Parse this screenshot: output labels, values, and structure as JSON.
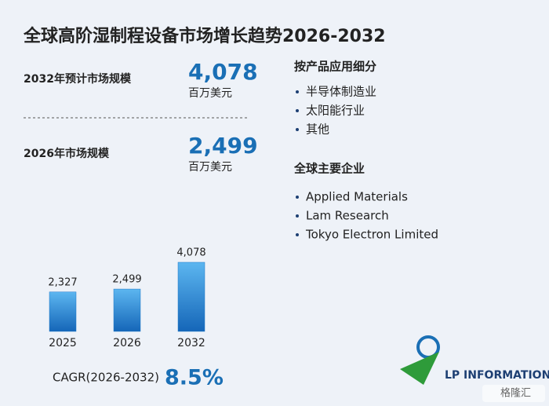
{
  "title": "全球高阶湿制程设备市场增长趋势2026-2032",
  "stats": [
    {
      "label": "2032年预计市场规模",
      "value": "4,078",
      "unit": "百万美元"
    },
    {
      "label": "2026年市场规模",
      "value": "2,499",
      "unit": "百万美元"
    }
  ],
  "segments": {
    "heading": "按产品应用细分",
    "items": [
      "半导体制造业",
      "太阳能行业",
      "其他"
    ]
  },
  "companies": {
    "heading": "全球主要企业",
    "items": [
      "Applied Materials",
      "Lam Research",
      "Tokyo Electron Limited"
    ]
  },
  "chart_data": {
    "type": "bar",
    "categories": [
      "2025",
      "2026",
      "2032"
    ],
    "values": [
      2327,
      2499,
      4078
    ],
    "value_labels": [
      "2,327",
      "2,499",
      "4,078"
    ],
    "color": "#1f78c8"
  },
  "cagr": {
    "label": "CAGR(2026-2032)",
    "value": "8.5%"
  },
  "logo": "LP INFORMATION",
  "watermark": "格隆汇"
}
